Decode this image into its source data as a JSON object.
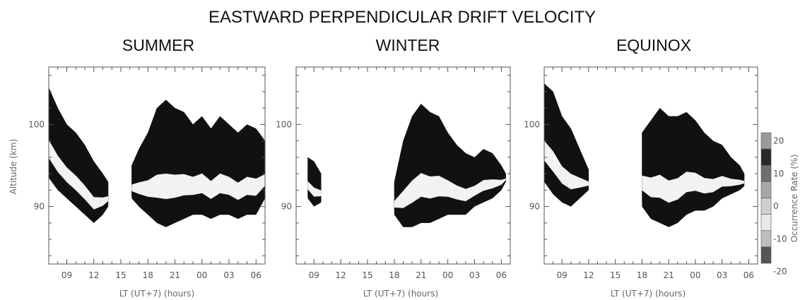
{
  "title": "EASTWARD PERPENDICULAR DRIFT VELOCITY",
  "colors": {
    "level_fills": [
      "#111111",
      "#2a2a2a",
      "#555555",
      "#7a7a7a",
      "#9c9c9c",
      "#bdbdbd",
      "#d6d6d6",
      "#e8e8e8"
    ],
    "frame": "#555555"
  },
  "chart_data": [
    {
      "type": "heatmap",
      "title": "SUMMER",
      "xlabel": "LT (UT+7) (hours)",
      "ylabel": "Altitude (km)",
      "x_ticks": [
        "09",
        "12",
        "15",
        "18",
        "21",
        "00",
        "03",
        "06"
      ],
      "y_ticks": [
        90,
        100
      ],
      "xlim": [
        7,
        31
      ],
      "ylim": [
        83,
        107
      ],
      "regions": [
        {
          "x": [
            7.0,
            13.6
          ],
          "profile": [
            [
              7.0,
              104.5,
              93.5
            ],
            [
              8.0,
              102.0,
              92.0
            ],
            [
              9.0,
              100.0,
              91.0
            ],
            [
              10.0,
              99.0,
              90.0
            ],
            [
              11.0,
              97.5,
              89.0
            ],
            [
              12.0,
              95.5,
              88.0
            ],
            [
              13.0,
              94.0,
              89.0
            ],
            [
              13.6,
              93.0,
              90.0
            ]
          ]
        },
        {
          "x": [
            16.2,
            31.0
          ],
          "profile": [
            [
              16.2,
              95.0,
              91.0
            ],
            [
              17.0,
              97.0,
              90.0
            ],
            [
              18.0,
              99.0,
              89.0
            ],
            [
              19.0,
              102.0,
              88.0
            ],
            [
              20.0,
              103.0,
              87.5
            ],
            [
              21.0,
              102.0,
              88.0
            ],
            [
              22.0,
              101.5,
              88.5
            ],
            [
              23.0,
              100.0,
              89.0
            ],
            [
              24.0,
              101.0,
              89.0
            ],
            [
              25.0,
              99.5,
              88.5
            ],
            [
              26.0,
              101.0,
              89.0
            ],
            [
              27.0,
              100.0,
              89.0
            ],
            [
              28.0,
              99.0,
              88.5
            ],
            [
              29.0,
              100.0,
              89.0
            ],
            [
              30.0,
              99.5,
              89.0
            ],
            [
              31.0,
              98.0,
              91.0
            ]
          ]
        }
      ]
    },
    {
      "type": "heatmap",
      "title": "WINTER",
      "xlabel": "LT (UT+7) (hours)",
      "ylabel": "",
      "x_ticks": [
        "09",
        "12",
        "15",
        "18",
        "21",
        "00",
        "03",
        "06"
      ],
      "y_ticks": [
        90,
        100
      ],
      "xlim": [
        7,
        31
      ],
      "ylim": [
        83,
        107
      ],
      "regions": [
        {
          "x": [
            8.3,
            9.8
          ],
          "profile": [
            [
              8.3,
              96.0,
              91.0
            ],
            [
              9.0,
              95.5,
              90.0
            ],
            [
              9.8,
              94.0,
              90.5
            ]
          ]
        },
        {
          "x": [
            18.0,
            30.5
          ],
          "profile": [
            [
              18.0,
              93.0,
              89.0
            ],
            [
              19.0,
              98.0,
              87.5
            ],
            [
              20.0,
              101.0,
              87.5
            ],
            [
              21.0,
              102.5,
              88.0
            ],
            [
              22.0,
              101.5,
              88.0
            ],
            [
              23.0,
              101.0,
              88.5
            ],
            [
              24.0,
              99.0,
              89.0
            ],
            [
              25.0,
              97.5,
              89.0
            ],
            [
              26.0,
              96.5,
              89.0
            ],
            [
              27.0,
              96.0,
              90.0
            ],
            [
              28.0,
              97.0,
              90.5
            ],
            [
              29.0,
              96.5,
              91.0
            ],
            [
              30.0,
              95.0,
              92.0
            ],
            [
              30.5,
              94.0,
              93.0
            ]
          ]
        }
      ]
    },
    {
      "type": "heatmap",
      "title": "EQUINOX",
      "xlabel": "LT (UT+7) (hours)",
      "ylabel": "",
      "x_ticks": [
        "09",
        "12",
        "15",
        "18",
        "21",
        "00",
        "03",
        "06"
      ],
      "y_ticks": [
        90,
        100
      ],
      "xlim": [
        7,
        31
      ],
      "ylim": [
        83,
        107
      ],
      "regions": [
        {
          "x": [
            7.0,
            12.0
          ],
          "profile": [
            [
              7.0,
              105.0,
              93.0
            ],
            [
              8.0,
              104.0,
              91.5
            ],
            [
              9.0,
              101.0,
              90.5
            ],
            [
              10.0,
              99.5,
              90.0
            ],
            [
              11.0,
              97.0,
              91.0
            ],
            [
              12.0,
              94.5,
              92.0
            ]
          ]
        },
        {
          "x": [
            18.0,
            29.5
          ],
          "profile": [
            [
              18.0,
              99.0,
              90.0
            ],
            [
              19.0,
              100.5,
              88.5
            ],
            [
              20.0,
              102.0,
              88.0
            ],
            [
              21.0,
              101.0,
              87.5
            ],
            [
              22.0,
              101.0,
              88.0
            ],
            [
              23.0,
              101.5,
              89.0
            ],
            [
              24.0,
              100.5,
              89.5
            ],
            [
              25.0,
              99.0,
              89.5
            ],
            [
              26.0,
              98.0,
              90.0
            ],
            [
              27.0,
              97.5,
              91.0
            ],
            [
              28.0,
              96.0,
              91.5
            ],
            [
              29.0,
              95.0,
              92.0
            ],
            [
              29.5,
              94.0,
              92.5
            ]
          ]
        }
      ]
    },
    {
      "type": "colorbar",
      "label": "Occurrence Rate (%)",
      "ticks": [
        "20",
        "10",
        "0",
        "-10",
        "-20"
      ],
      "levels": [
        20,
        15,
        10,
        5,
        0,
        -5,
        -10,
        -15,
        -20
      ]
    }
  ]
}
